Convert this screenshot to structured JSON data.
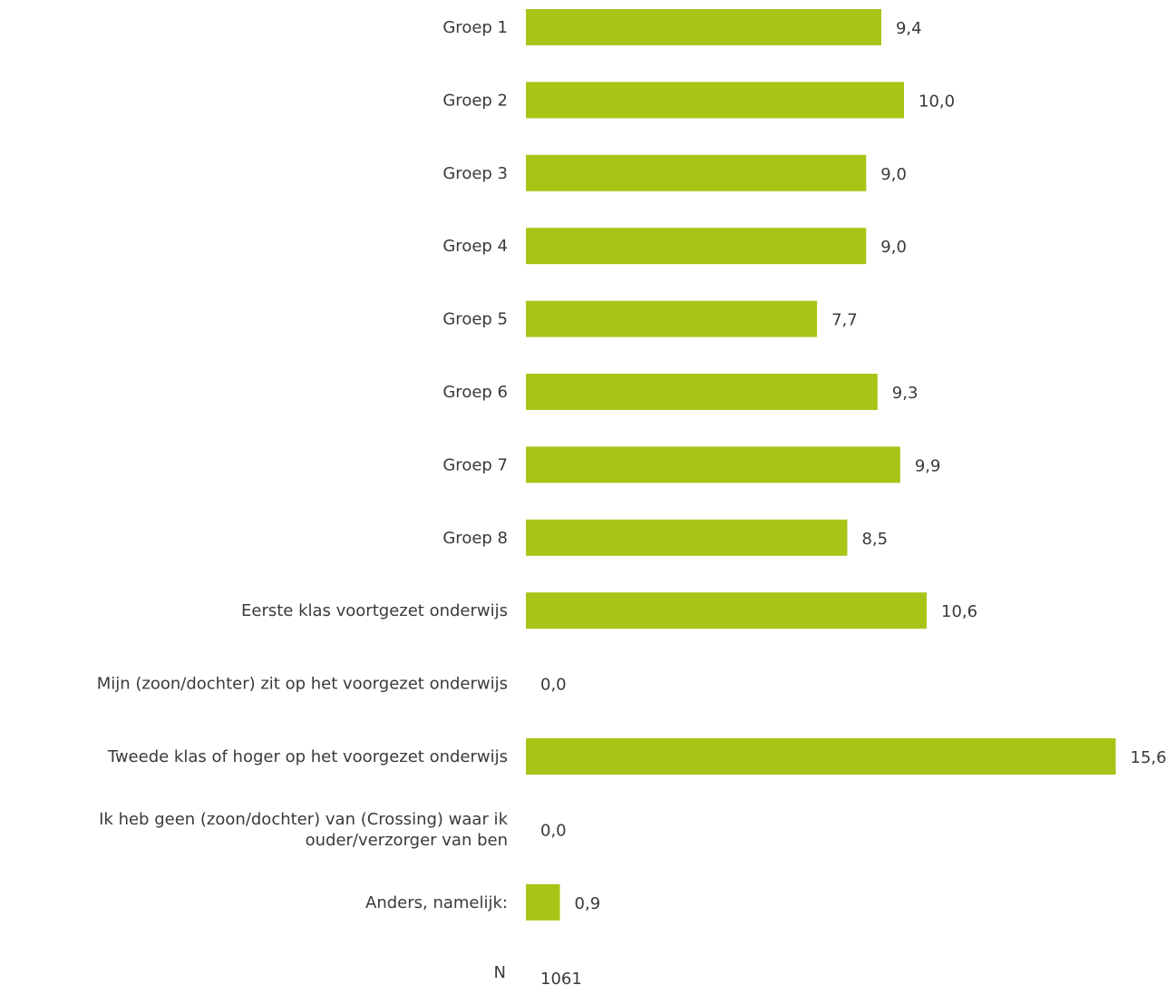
{
  "chart_data": {
    "type": "bar",
    "orientation": "horizontal",
    "categories": [
      [
        "Groep 1"
      ],
      [
        "Groep 2"
      ],
      [
        "Groep 3"
      ],
      [
        "Groep 4"
      ],
      [
        "Groep 5"
      ],
      [
        "Groep 6"
      ],
      [
        "Groep 7"
      ],
      [
        "Groep 8"
      ],
      [
        "Eerste klas voortgezet onderwijs"
      ],
      [
        "Mijn (zoon/dochter) zit op het voorgezet onderwijs"
      ],
      [
        "Tweede klas of hoger op het voorgezet onderwijs"
      ],
      [
        "Ik heb geen (zoon/dochter) van (Crossing) waar ik",
        "ouder/verzorger van ben"
      ],
      [
        "Anders, namelijk:"
      ]
    ],
    "values": [
      9.4,
      10.0,
      9.0,
      9.0,
      7.7,
      9.3,
      9.9,
      8.5,
      10.6,
      0.0,
      15.6,
      0.0,
      0.9
    ],
    "value_labels": [
      "9,4",
      "10,0",
      "9,0",
      "9,0",
      "7,7",
      "9,3",
      "9,9",
      "8,5",
      "10,6",
      "0,0",
      "15,6",
      "0,0",
      "0,9"
    ],
    "bar_color": "#a9c417",
    "grid": false,
    "legend": "none",
    "n_label": "N",
    "n_value": "1061"
  }
}
